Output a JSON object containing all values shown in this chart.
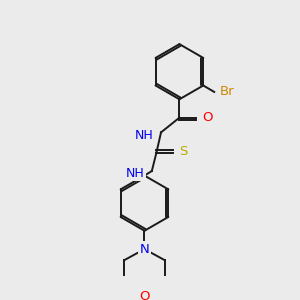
{
  "background_color": "#ebebeb",
  "bond_color": "#1a1a1a",
  "atom_colors": {
    "Br": "#cc8800",
    "N": "#0000ee",
    "O": "#ff0000",
    "S": "#bbaa00",
    "C": "#1a1a1a",
    "H": "#1a1a1a"
  },
  "bond_width": 1.4,
  "font_size": 9
}
